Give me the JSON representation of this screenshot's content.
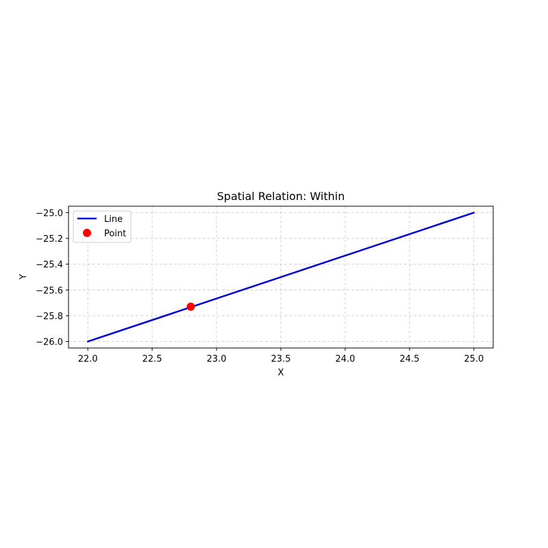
{
  "chart_data": {
    "type": "line",
    "title": "Spatial Relation: Within",
    "xlabel": "X",
    "ylabel": "Y",
    "xlim": [
      21.85,
      25.15
    ],
    "ylim": [
      -26.05,
      -24.95
    ],
    "xticks": [
      22.0,
      22.5,
      23.0,
      23.5,
      24.0,
      24.5,
      25.0
    ],
    "xtick_labels": [
      "22.0",
      "22.5",
      "23.0",
      "23.5",
      "24.0",
      "24.5",
      "25.0"
    ],
    "yticks": [
      -25.0,
      -25.2,
      -25.4,
      -25.6,
      -25.8,
      -26.0
    ],
    "ytick_labels": [
      "−25.0",
      "−25.2",
      "−25.4",
      "−25.6",
      "−25.8",
      "−26.0"
    ],
    "grid": true,
    "legend_position": "upper-left",
    "series": [
      {
        "name": "Line",
        "kind": "line",
        "color": "#0000dd",
        "x": [
          22.0,
          25.0
        ],
        "y": [
          -26.0,
          -25.0
        ]
      },
      {
        "name": "Point",
        "kind": "point",
        "color": "#ff0000",
        "x": [
          22.8
        ],
        "y": [
          -25.73
        ]
      }
    ]
  }
}
